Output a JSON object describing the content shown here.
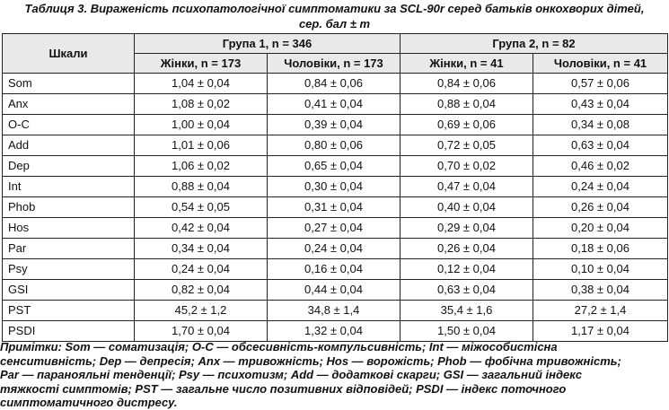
{
  "caption": {
    "line1": "Таблиця 3. Вираженість психопатологічної симптоматики за SCL-90r серед батьків онкохворих дітей,",
    "line2": "сер. бал ± m"
  },
  "table": {
    "scale_header": "Шкали",
    "group1_header": "Група 1, n = 346",
    "group2_header": "Група 2, n = 82",
    "sub_headers": [
      "Жінки, n = 173",
      "Чоловіки, n = 173",
      "Жінки, n = 41",
      "Чоловіки, n = 41"
    ],
    "rows": [
      {
        "scale": "Som",
        "values": [
          "1,04 ± 0,04",
          "0,84 ± 0,06",
          "0,84 ± 0,06",
          "0,57 ± 0,06"
        ]
      },
      {
        "scale": "Anx",
        "values": [
          "1,08 ± 0,02",
          "0,41 ± 0,04",
          "0,88 ± 0,04",
          "0,43 ± 0,04"
        ]
      },
      {
        "scale": "O-C",
        "values": [
          "1,00 ± 0,04",
          "0,39 ± 0,04",
          "0,69 ± 0,06",
          "0,34 ± 0,08"
        ]
      },
      {
        "scale": "Add",
        "values": [
          "1,01 ± 0,06",
          "0,80 ± 0,06",
          "0,72 ± 0,05",
          "0,63 ± 0,04"
        ]
      },
      {
        "scale": "Dep",
        "values": [
          "1,06 ± 0,02",
          "0,65 ± 0,04",
          "0,70 ± 0,02",
          "0,46 ± 0,02"
        ]
      },
      {
        "scale": "Int",
        "values": [
          "0,88 ± 0,04",
          "0,30 ± 0,04",
          "0,47 ± 0,04",
          "0,24 ± 0,04"
        ]
      },
      {
        "scale": "Phob",
        "values": [
          "0,54 ± 0,05",
          "0,31 ± 0,04",
          "0,40 ± 0,04",
          "0,26 ± 0,04"
        ]
      },
      {
        "scale": "Hos",
        "values": [
          "0,42 ± 0,04",
          "0,27 ± 0,04",
          "0,29 ± 0,04",
          "0,20 ± 0,04"
        ]
      },
      {
        "scale": "Par",
        "values": [
          "0,34 ± 0,04",
          "0,24 ± 0,04",
          "0,26 ± 0,04",
          "0,18 ± 0,06"
        ]
      },
      {
        "scale": "Psy",
        "values": [
          "0,24 ± 0,04",
          "0,16 ± 0,04",
          "0,12 ± 0,04",
          "0,10 ± 0,04"
        ]
      },
      {
        "scale": "GSI",
        "values": [
          "0,82 ± 0,04",
          "0,44 ± 0,04",
          "0,63 ± 0,04",
          "0,38 ± 0,04"
        ]
      },
      {
        "scale": "PST",
        "values": [
          "45,2 ± 1,2",
          "34,8 ± 1,4",
          "35,4 ± 1,6",
          "27,2 ± 1,4"
        ]
      },
      {
        "scale": "PSDI",
        "values": [
          "1,70 ± 0,04",
          "1,32 ± 0,04",
          "1,50 ± 0,04",
          "1,17 ± 0,04"
        ]
      }
    ]
  },
  "notes": {
    "lines": [
      "Примітки: Som — соматизація; O-C — обсесивність-компульсивність; Int — міжособистісна",
      "сенситивність; Dep — депресія; Anx — тривожність; Hos — ворожість; Phob — фобічна тривожність;",
      "Par — паранояльні тенденції; Psy — психотизм; Add — додаткові скарги; GSI — загальний індекс",
      "тяжкості симптомів; PST — загальне число позитивних відповідей; PSDI — індекс поточного",
      "симптоматичного дистресу."
    ]
  }
}
